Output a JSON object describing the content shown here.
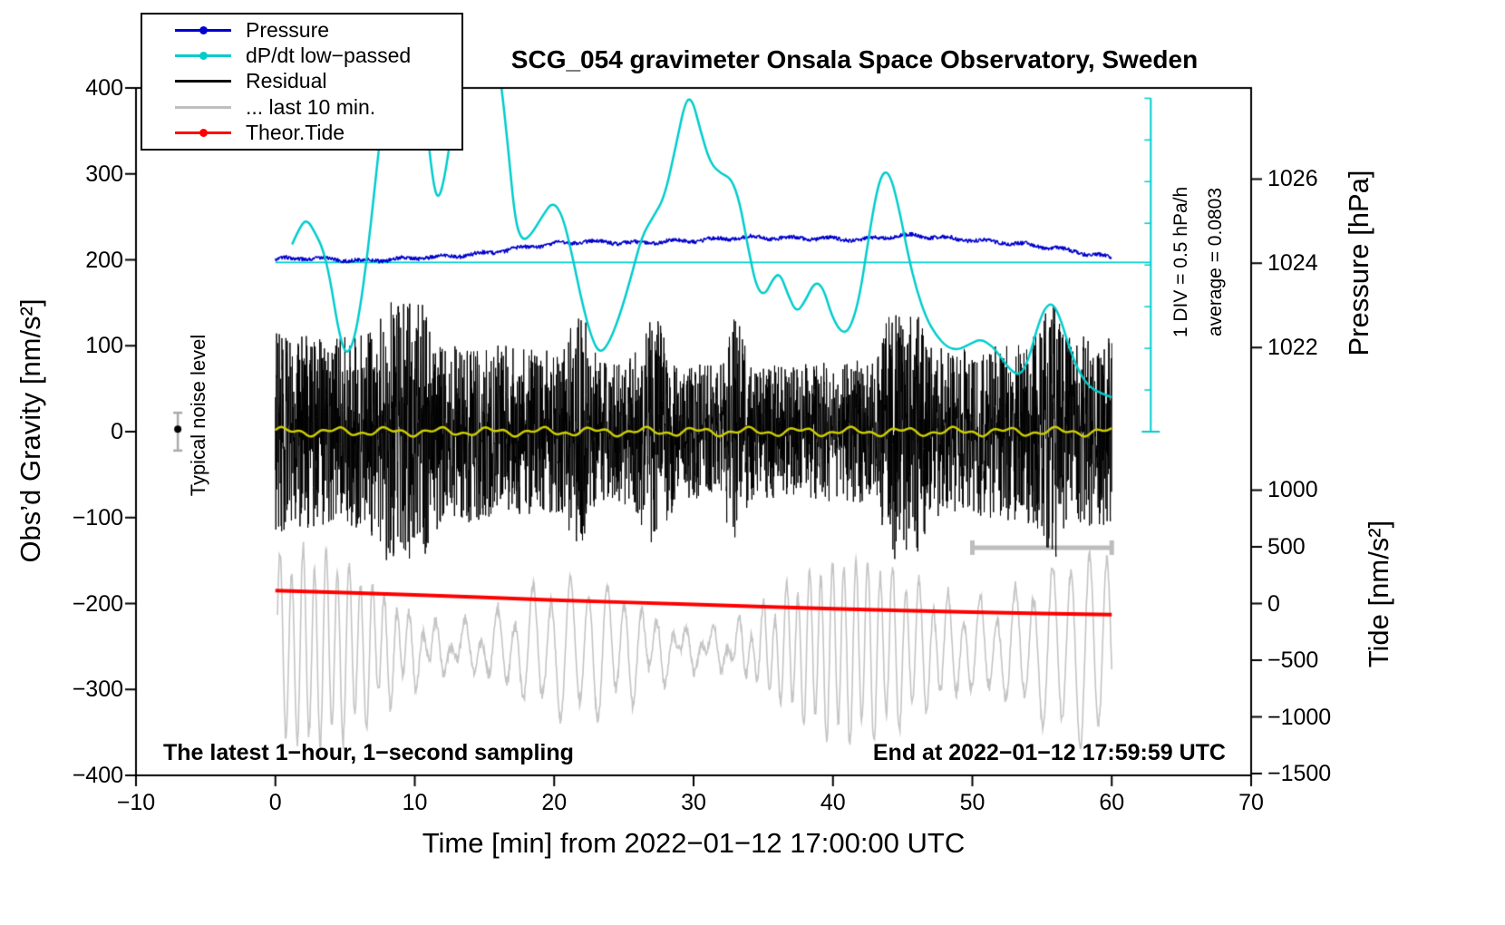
{
  "title": "SCG_054 gravimeter Onsala Space Observatory, Sweden",
  "legend": {
    "items": [
      {
        "label": "Pressure",
        "color": "#0000cc",
        "dot": true
      },
      {
        "label": "dP/dt low−passed",
        "color": "#00cccc",
        "dot": true
      },
      {
        "label": "Residual",
        "color": "#000000",
        "dot": false
      },
      {
        "label": "... last 10 min.",
        "color": "#bfbfbf",
        "dot": false
      },
      {
        "label": "Theor.Tide",
        "color": "#ff0000",
        "dot": true
      }
    ]
  },
  "annotations": {
    "noise_level": "Typical noise level",
    "div_scale": "1 DIV = 0.5 hPa/h",
    "average": "average = 0.0803",
    "sampling": "The latest 1−hour, 1−second sampling",
    "end_time": "End at 2022−01−12 17:59:59 UTC"
  },
  "axes": {
    "x_label": "Time [min] from 2022−01−12 17:00:00 UTC",
    "y_left_label": "Obs’d Gravity [nm/s²]",
    "y_right_pressure_label": "Pressure [hPa]",
    "y_right_tide_label": "Tide [nm/s²]"
  },
  "chart_data": {
    "type": "line",
    "title": "SCG_054 gravimeter Onsala Space Observatory, Sweden",
    "xlabel": "Time [min] from 2022-01-12 17:00:00 UTC",
    "ylabel": "Obs'd Gravity [nm/s2]",
    "xlim": [
      -10,
      70
    ],
    "ylim_gravity": [
      -400,
      400
    ],
    "x_ticks": [
      -10,
      0,
      10,
      20,
      30,
      40,
      50,
      60,
      70
    ],
    "y_ticks_gravity": [
      400,
      300,
      200,
      100,
      0,
      -100,
      -200,
      -300,
      -400
    ],
    "grid": false,
    "legend_position": "top-left",
    "pressure_axis": {
      "ticks": [
        1026,
        1024,
        1022
      ],
      "gravity_of_1024": 196,
      "gravity_per_hPa": 49
    },
    "tide_axis": {
      "ticks": [
        1000,
        500,
        0,
        -500,
        -1000,
        -1500
      ],
      "gravity_of_0": -200,
      "gravity_per_unit": 0.132
    },
    "series": {
      "pressure": {
        "name": "Pressure",
        "color": "#0000cc",
        "unit": "hPa",
        "x": [
          0,
          2,
          4,
          6,
          8,
          10,
          12,
          14,
          16,
          18,
          20,
          22,
          24,
          26,
          28,
          30,
          32,
          34,
          36,
          38,
          40,
          42,
          44,
          46,
          48,
          50,
          52,
          54,
          56,
          58,
          60
        ],
        "hPa": [
          1024.1,
          1024.12,
          1024.1,
          1024.06,
          1024.08,
          1024.13,
          1024.16,
          1024.2,
          1024.28,
          1024.38,
          1024.46,
          1024.52,
          1024.5,
          1024.48,
          1024.52,
          1024.54,
          1024.58,
          1024.62,
          1024.6,
          1024.6,
          1024.58,
          1024.56,
          1024.64,
          1024.66,
          1024.6,
          1024.55,
          1024.5,
          1024.44,
          1024.36,
          1024.24,
          1024.14
        ]
      },
      "dpdt": {
        "name": "dP/dt low-passed",
        "color": "#00cccc",
        "unit": "gravity-axis units; 1 DIV = 0.5 hPa/h; curve clipped above 400",
        "points": [
          [
            1.2,
            218
          ],
          [
            1.8,
            240
          ],
          [
            2.3,
            247
          ],
          [
            2.9,
            230
          ],
          [
            3.4,
            213
          ],
          [
            3.9,
            180
          ],
          [
            4.5,
            120
          ],
          [
            5.0,
            90
          ],
          [
            5.5,
            98
          ],
          [
            6.0,
            135
          ],
          [
            6.6,
            205
          ],
          [
            7.1,
            280
          ],
          [
            7.6,
            355
          ],
          [
            8.1,
            430
          ],
          [
            9.0,
            520
          ],
          [
            10.0,
            480
          ],
          [
            10.7,
            380
          ],
          [
            11.3,
            290
          ],
          [
            11.7,
            268
          ],
          [
            12.2,
            300
          ],
          [
            12.8,
            370
          ],
          [
            13.4,
            440
          ],
          [
            14.3,
            500
          ],
          [
            15.3,
            490
          ],
          [
            16.1,
            420
          ],
          [
            16.7,
            330
          ],
          [
            17.2,
            245
          ],
          [
            17.7,
            222
          ],
          [
            18.3,
            228
          ],
          [
            19.2,
            252
          ],
          [
            19.9,
            268
          ],
          [
            20.6,
            252
          ],
          [
            21.3,
            205
          ],
          [
            22.0,
            150
          ],
          [
            22.7,
            108
          ],
          [
            23.3,
            90
          ],
          [
            24.0,
            105
          ],
          [
            24.8,
            140
          ],
          [
            25.6,
            185
          ],
          [
            26.3,
            228
          ],
          [
            27.1,
            250
          ],
          [
            27.9,
            272
          ],
          [
            28.7,
            330
          ],
          [
            29.4,
            385
          ],
          [
            29.9,
            388
          ],
          [
            30.5,
            350
          ],
          [
            31.2,
            312
          ],
          [
            32.0,
            300
          ],
          [
            32.7,
            295
          ],
          [
            33.3,
            268
          ],
          [
            33.9,
            215
          ],
          [
            34.5,
            168
          ],
          [
            35.1,
            158
          ],
          [
            35.7,
            178
          ],
          [
            36.2,
            185
          ],
          [
            36.8,
            158
          ],
          [
            37.4,
            138
          ],
          [
            38.0,
            152
          ],
          [
            38.7,
            175
          ],
          [
            39.3,
            168
          ],
          [
            39.9,
            135
          ],
          [
            40.6,
            115
          ],
          [
            41.2,
            118
          ],
          [
            41.9,
            155
          ],
          [
            42.6,
            230
          ],
          [
            43.2,
            285
          ],
          [
            43.7,
            305
          ],
          [
            44.2,
            295
          ],
          [
            44.8,
            255
          ],
          [
            45.4,
            205
          ],
          [
            46.0,
            165
          ],
          [
            46.7,
            132
          ],
          [
            47.4,
            112
          ],
          [
            48.2,
            98
          ],
          [
            49.0,
            95
          ],
          [
            49.8,
            102
          ],
          [
            50.6,
            108
          ],
          [
            51.4,
            100
          ],
          [
            52.0,
            88
          ],
          [
            52.7,
            72
          ],
          [
            53.4,
            65
          ],
          [
            54.0,
            82
          ],
          [
            54.6,
            118
          ],
          [
            55.2,
            145
          ],
          [
            55.8,
            150
          ],
          [
            56.4,
            128
          ],
          [
            57.0,
            95
          ],
          [
            57.7,
            68
          ],
          [
            58.4,
            52
          ],
          [
            59.2,
            45
          ],
          [
            60.0,
            40
          ]
        ]
      },
      "avg_line": {
        "name": "average line",
        "color": "#00cccc",
        "y_gravity": 197,
        "x_range": [
          0,
          62.8
        ],
        "average_hPa_per_h": 0.0803
      },
      "div_axis": {
        "name": "dP/dt scale axis",
        "color": "#00cccc",
        "x": 62.8,
        "y_range": [
          0,
          388
        ],
        "tick_spacing": 48.5,
        "div_value_hPa_per_h": 0.5
      },
      "residual": {
        "name": "Residual",
        "color": "#000000",
        "x_range": [
          0,
          60
        ],
        "mean": 0,
        "typical_peak": 100,
        "max_peak": 150,
        "sampling": "1 second",
        "seed": 20220112
      },
      "smoothed_residual": {
        "name": "low-passed residual",
        "color": "#cccc00",
        "y_mean": 0,
        "amp": 3.5
      },
      "residual_last10": {
        "name": "... last 10 min.",
        "color": "#c4c4c4",
        "center": -253,
        "x_range": [
          0.15,
          60
        ],
        "typical_amp": 60,
        "max_amp": 115,
        "seed": 999
      },
      "theor_tide": {
        "name": "Theor.Tide",
        "color": "#ff0000",
        "unit": "nm/s2 (tide axis)",
        "x": [
          0,
          5,
          10,
          15,
          20,
          25,
          30,
          35,
          40,
          45,
          50,
          55,
          60
        ],
        "tide": [
          114,
          95,
          76,
          53,
          30,
          11,
          -8,
          -27,
          -45,
          -61,
          -76,
          -87,
          -98
        ]
      },
      "scalebar": {
        "name": "10-minute scale bar",
        "color": "#bdbdbd",
        "y": -135,
        "x_range": [
          50,
          60
        ]
      },
      "noise_marker": {
        "name": "typical noise level marker",
        "x": -7,
        "dot_y": 3,
        "bar_range": [
          -22,
          22
        ]
      }
    }
  }
}
